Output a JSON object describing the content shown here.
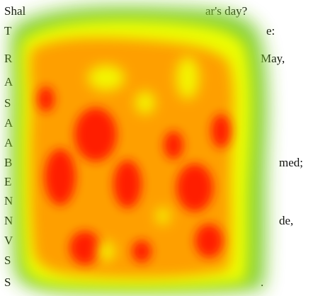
{
  "heatmap": {
    "colors": {
      "green": "#7fce2b",
      "yellow": "#f2ff00",
      "orange": "#ff9a00",
      "red": "#ff1a00"
    }
  },
  "text_lines": [
    {
      "left": "Shal",
      "right": "ar's day?"
    },
    {
      "left": "T",
      "right": "e:"
    },
    {
      "left": "R",
      "right": "May,"
    },
    {
      "left": "A",
      "right": ""
    },
    {
      "left": "S",
      "right": ""
    },
    {
      "left": "A",
      "right": ""
    },
    {
      "left": "A",
      "right": ""
    },
    {
      "left": "B",
      "right": "med;"
    },
    {
      "left": "E",
      "right": ""
    },
    {
      "left": "N",
      "right": ""
    },
    {
      "left": "N",
      "right": "de,"
    },
    {
      "left": "V",
      "right": ""
    },
    {
      "left": "S",
      "right": ""
    },
    {
      "left": "S",
      "right": "."
    }
  ]
}
